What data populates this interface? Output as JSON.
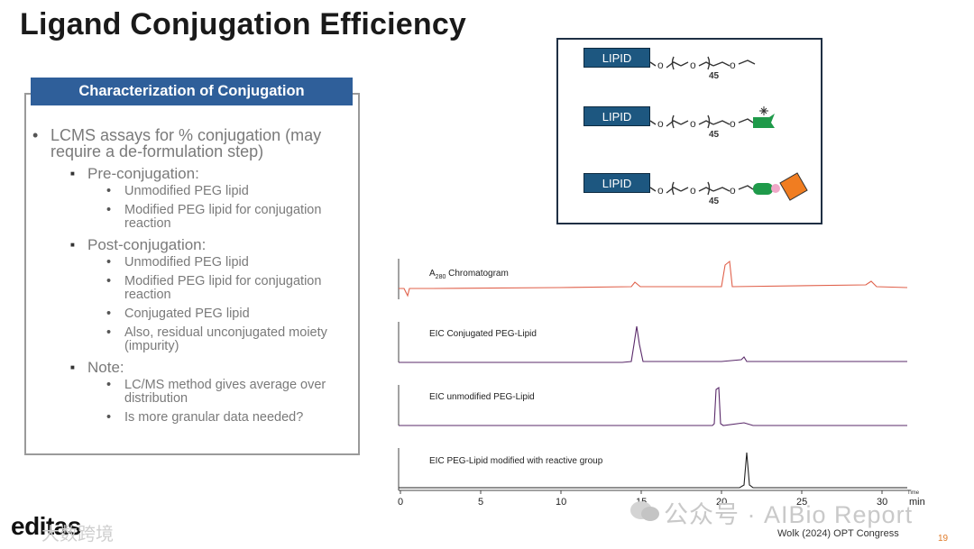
{
  "slide": {
    "title": "Ligand Conjugation Efficiency",
    "page_number": "19",
    "citation": "Wolk (2024) OPT Congress",
    "logo_text": "editas",
    "logo_overlay": "大数跨境",
    "watermark": "公众号 · AIBio Report"
  },
  "characterization": {
    "header": "Characterization of Conjugation",
    "intro": "LCMS assays for % conjugation (may require a de-formulation step)",
    "groups": [
      {
        "label": "Pre-conjugation:",
        "items": [
          "Unmodified PEG lipid",
          "Modified PEG lipid for conjugation reaction"
        ]
      },
      {
        "label": "Post-conjugation:",
        "items": [
          "Unmodified PEG lipid",
          "Modified PEG lipid for conjugation reaction",
          "Conjugated PEG lipid",
          "Also, residual unconjugated moiety (impurity)"
        ]
      },
      {
        "label": "Note:",
        "items": [
          "LC/MS method gives average over distribution",
          "Is more granular data needed?"
        ]
      }
    ]
  },
  "structures": {
    "lipid_label": "LIPID",
    "repeat_count": "45",
    "colors": {
      "lipid_fill": "#1d5780",
      "green_group": "#1f9a4a",
      "pink_link": "#f0a8c8",
      "ligand": "#f07d21"
    }
  },
  "chromatogram": {
    "traces": [
      {
        "label_prefix": "A",
        "label_sub": "280",
        "label_suffix": " Chromatogram",
        "color": "#e0604a"
      },
      {
        "label": "EIC Conjugated PEG-Lipid",
        "color": "#5a2a6a"
      },
      {
        "label": "EIC unmodified PEG-Lipid",
        "color": "#5a2a6a"
      },
      {
        "label": "EIC PEG-Lipid modified with reactive group",
        "color": "#222222"
      }
    ],
    "x_ticks": [
      "0",
      "5",
      "10",
      "15",
      "20",
      "25",
      "30"
    ],
    "x_unit": "min",
    "x_axis_title": "Time"
  }
}
